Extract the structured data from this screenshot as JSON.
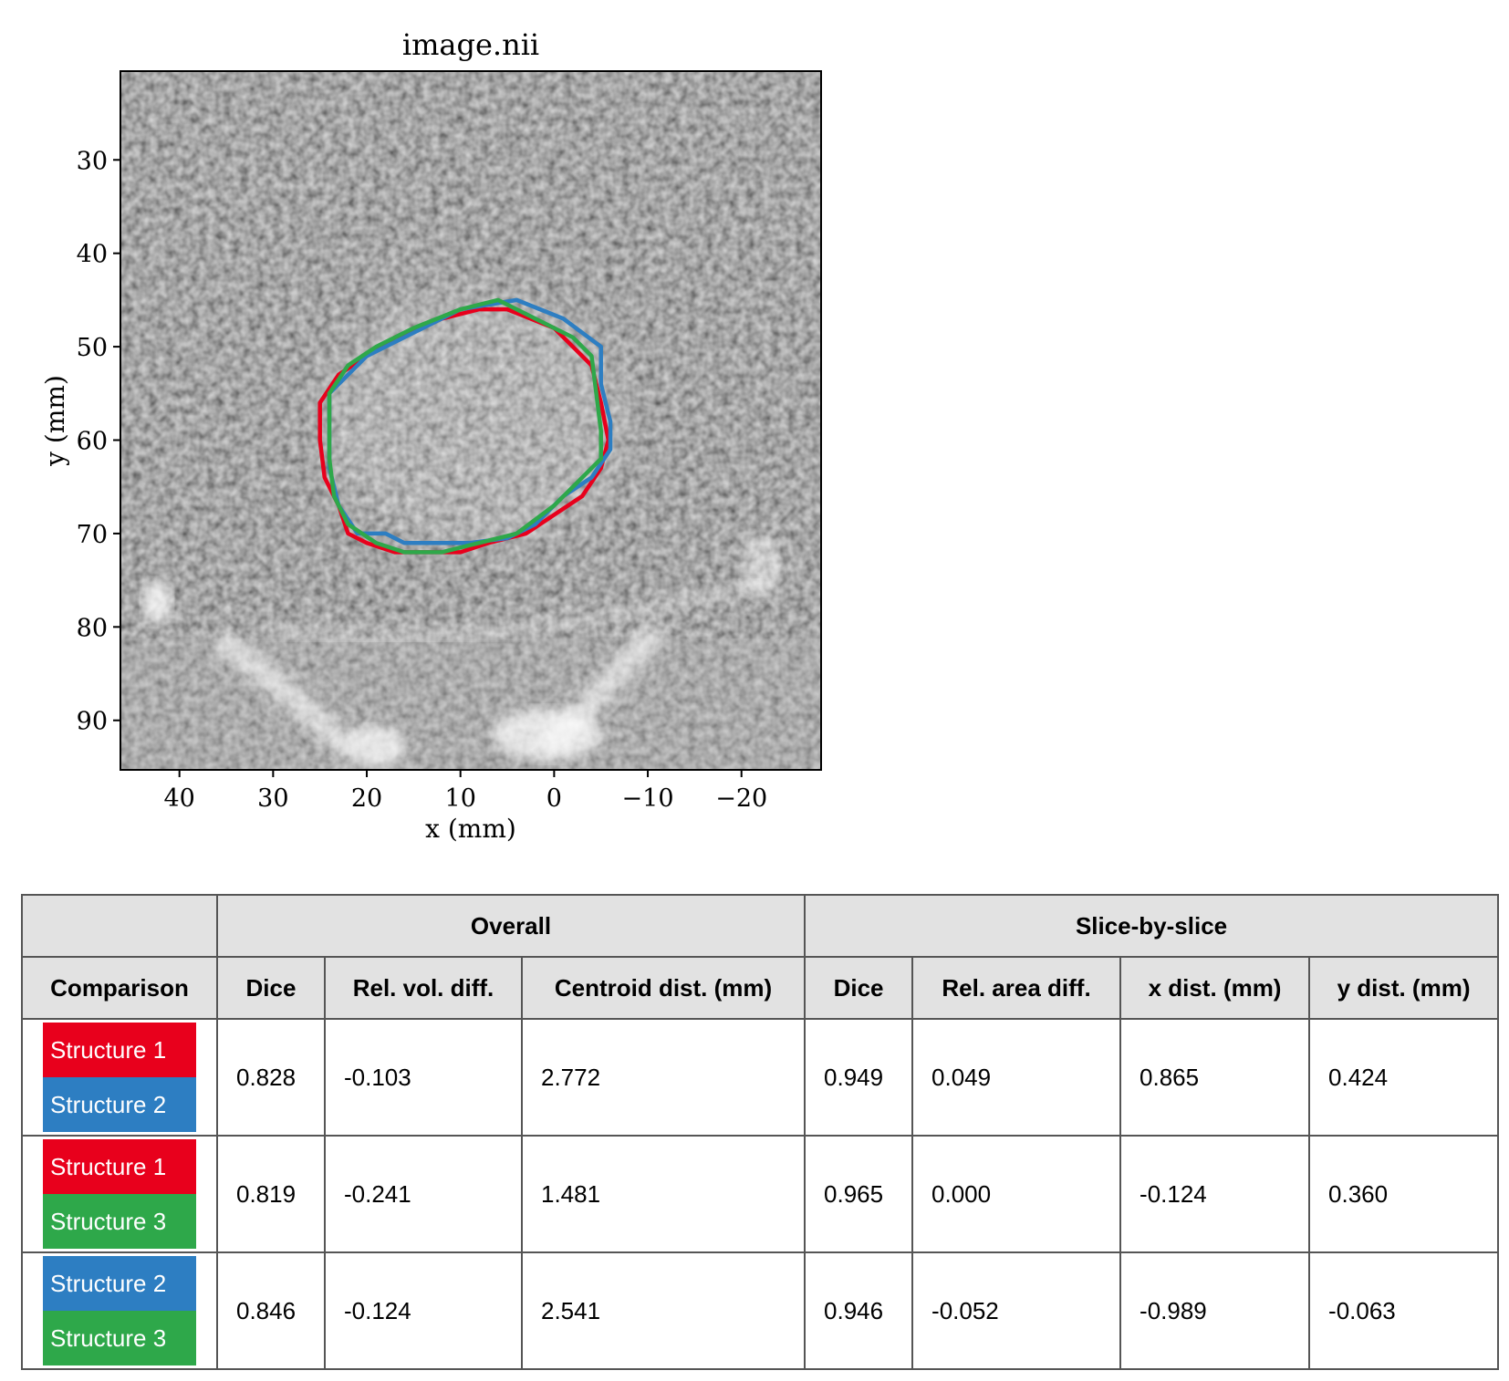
{
  "plot": {
    "title": "image.nii",
    "xlabel": "x (mm)",
    "ylabel": "y (mm)",
    "xticks": [
      "40",
      "30",
      "20",
      "10",
      "0",
      "−10",
      "−20"
    ],
    "yticks": [
      "30",
      "40",
      "50",
      "60",
      "70",
      "80",
      "90"
    ],
    "xlim": [
      46.3,
      -28.5
    ],
    "ylim": [
      20.5,
      95.3
    ],
    "contours": [
      {
        "label": "Structure 1",
        "color": "#e8001c",
        "points": [
          [
            5,
            46
          ],
          [
            0,
            48
          ],
          [
            -4,
            52
          ],
          [
            -5,
            56
          ],
          [
            -5.8,
            60
          ],
          [
            -5,
            63
          ],
          [
            -3,
            66
          ],
          [
            0,
            68
          ],
          [
            3,
            70
          ],
          [
            7,
            71
          ],
          [
            10,
            72
          ],
          [
            14,
            72
          ],
          [
            17,
            72
          ],
          [
            20,
            71
          ],
          [
            22,
            70
          ],
          [
            23,
            67
          ],
          [
            24.5,
            64
          ],
          [
            25,
            60
          ],
          [
            25,
            56
          ],
          [
            23,
            53
          ],
          [
            20,
            51
          ],
          [
            17,
            49
          ],
          [
            12,
            47
          ],
          [
            8,
            46
          ]
        ]
      },
      {
        "label": "Structure 2",
        "color": "#2d7ec2",
        "points": [
          [
            4,
            45
          ],
          [
            -1,
            47
          ],
          [
            -5,
            50
          ],
          [
            -5,
            54
          ],
          [
            -6,
            58
          ],
          [
            -6,
            61
          ],
          [
            -4,
            64
          ],
          [
            -1,
            66
          ],
          [
            2,
            69
          ],
          [
            5,
            70.5
          ],
          [
            9,
            71
          ],
          [
            13,
            71
          ],
          [
            16,
            71
          ],
          [
            18,
            70
          ],
          [
            21,
            70
          ],
          [
            23,
            67
          ],
          [
            24,
            63
          ],
          [
            24,
            59
          ],
          [
            24,
            55
          ],
          [
            22,
            53
          ],
          [
            20,
            51
          ],
          [
            16,
            49
          ],
          [
            10,
            46
          ]
        ]
      },
      {
        "label": "Structure 3",
        "color": "#2ea84a",
        "points": [
          [
            6,
            45
          ],
          [
            2,
            47
          ],
          [
            -2,
            49
          ],
          [
            -4,
            51
          ],
          [
            -4.5,
            55
          ],
          [
            -5,
            59
          ],
          [
            -5,
            62
          ],
          [
            -3,
            64
          ],
          [
            0,
            67
          ],
          [
            4,
            70
          ],
          [
            8,
            71
          ],
          [
            12,
            72
          ],
          [
            16,
            72
          ],
          [
            19,
            71
          ],
          [
            22,
            69
          ],
          [
            23.5,
            66
          ],
          [
            24,
            62
          ],
          [
            24,
            58
          ],
          [
            24,
            55
          ],
          [
            22,
            52
          ],
          [
            19,
            50
          ],
          [
            15,
            48
          ],
          [
            10,
            46
          ]
        ]
      }
    ]
  },
  "table": {
    "groups": [
      "Overall",
      "Slice-by-slice"
    ],
    "headers": [
      "Comparison",
      "Dice",
      "Rel. vol. diff.",
      "Centroid dist. (mm)",
      "Dice",
      "Rel. area diff.",
      "x dist. (mm)",
      "y dist. (mm)"
    ],
    "rows": [
      {
        "a": {
          "label": "Structure 1",
          "color": "#e8001c"
        },
        "b": {
          "label": "Structure 2",
          "color": "#2d7ec2"
        },
        "values": [
          "0.828",
          "-0.103",
          "2.772",
          "0.949",
          "0.049",
          "0.865",
          "0.424"
        ]
      },
      {
        "a": {
          "label": "Structure 1",
          "color": "#e8001c"
        },
        "b": {
          "label": "Structure 3",
          "color": "#2ea84a"
        },
        "values": [
          "0.819",
          "-0.241",
          "1.481",
          "0.965",
          "0.000",
          "-0.124",
          "0.360"
        ]
      },
      {
        "a": {
          "label": "Structure 2",
          "color": "#2d7ec2"
        },
        "b": {
          "label": "Structure 3",
          "color": "#2ea84a"
        },
        "values": [
          "0.846",
          "-0.124",
          "2.541",
          "0.946",
          "-0.052",
          "-0.989",
          "-0.063"
        ]
      }
    ]
  }
}
